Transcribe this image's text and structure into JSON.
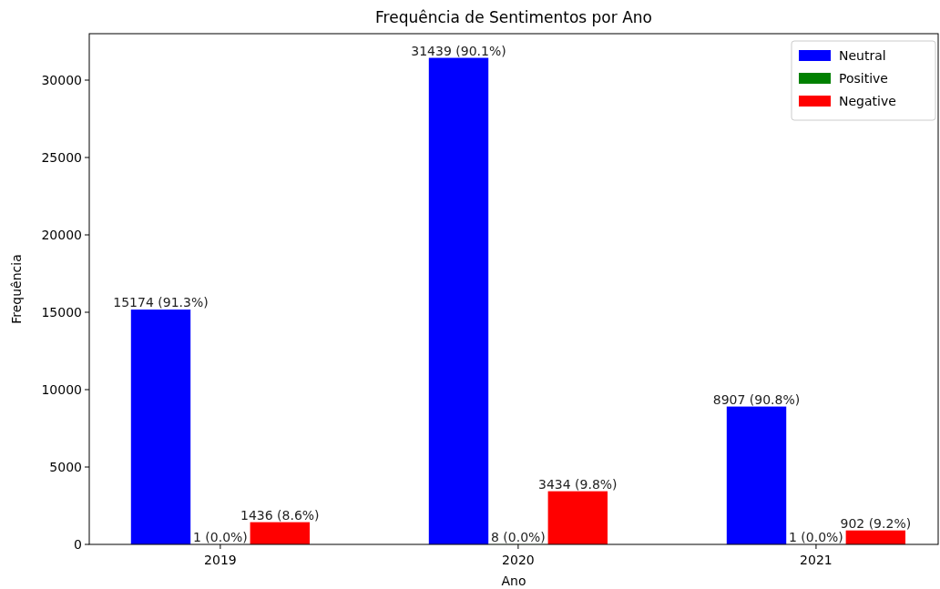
{
  "chart_data": {
    "type": "bar",
    "title": "Frequência de Sentimentos por Ano",
    "xlabel": "Ano",
    "ylabel": "Frequência",
    "categories": [
      "2019",
      "2020",
      "2021"
    ],
    "series": [
      {
        "name": "Neutral",
        "color": "#0000ff",
        "values": [
          15174,
          31439,
          8907
        ],
        "value_labels": [
          "15174 (91.3%)",
          "31439 (90.1%)",
          "8907 (90.8%)"
        ]
      },
      {
        "name": "Positive",
        "color": "#008000",
        "values": [
          1,
          8,
          1
        ],
        "value_labels": [
          "1 (0.0%)",
          "8 (0.0%)",
          "1 (0.0%)"
        ]
      },
      {
        "name": "Negative",
        "color": "#ff0000",
        "values": [
          1436,
          3434,
          902
        ],
        "value_labels": [
          "1436 (8.6%)",
          "3434 (9.8%)",
          "902 (9.2%)"
        ]
      }
    ],
    "ylim": [
      0,
      33000
    ],
    "yticks": [
      0,
      5000,
      10000,
      15000,
      20000,
      25000,
      30000
    ],
    "grid": false,
    "legend": "top right"
  }
}
